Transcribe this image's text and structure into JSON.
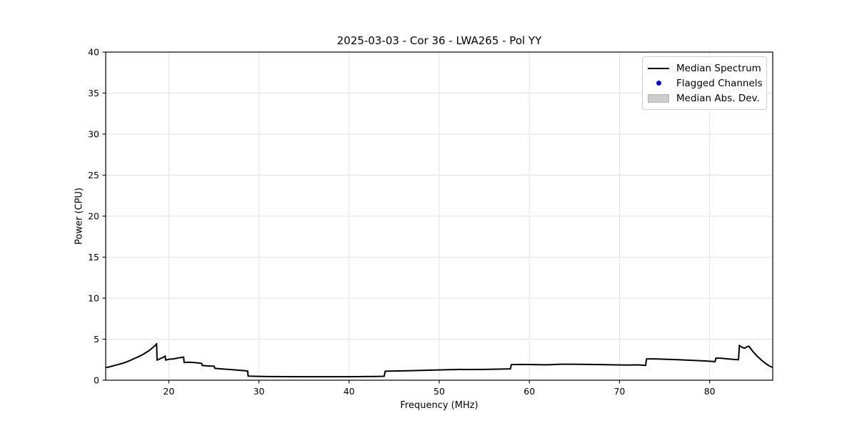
{
  "figure": {
    "title": "2025-03-03 - Cor 36 - LWA265 - Pol YY",
    "xlabel": "Frequency (MHz)",
    "ylabel": "Power (CPU)"
  },
  "legend": {
    "position": "upper right",
    "items": [
      {
        "label": "Median Spectrum",
        "type": "line",
        "color": "#000000"
      },
      {
        "label": "Flagged Channels",
        "type": "dot",
        "color": "#0000ff"
      },
      {
        "label": "Median Abs. Dev.",
        "type": "patch",
        "color": "#cccccc",
        "edge_color": "#b3b3b3"
      }
    ]
  },
  "chart_data": {
    "type": "line",
    "title": "2025-03-03 - Cor 36 - LWA265 - Pol YY",
    "xlabel": "Frequency (MHz)",
    "ylabel": "Power (CPU)",
    "xlim": [
      13,
      87
    ],
    "ylim": [
      0,
      40
    ],
    "xticks": [
      20,
      30,
      40,
      50,
      60,
      70,
      80
    ],
    "yticks": [
      0,
      5,
      10,
      15,
      20,
      25,
      30,
      35,
      40
    ],
    "grid": true,
    "grid_color": "#e3e3e3",
    "legend_position": "upper right",
    "flagged_channels": [],
    "series": [
      {
        "name": "Median Spectrum",
        "color": "#000000",
        "line_width": 2,
        "x": [
          13.1,
          13.5,
          14.0,
          14.5,
          15.0,
          15.6,
          16.2,
          16.8,
          17.3,
          17.8,
          18.2,
          18.5,
          18.65,
          18.7,
          19.0,
          19.4,
          19.6,
          19.65,
          20.0,
          20.5,
          21.0,
          21.5,
          21.65,
          21.7,
          22.2,
          22.8,
          23.3,
          23.65,
          23.7,
          24.2,
          24.8,
          25.05,
          25.1,
          25.6,
          26.2,
          26.8,
          27.4,
          28.0,
          28.5,
          28.75,
          28.8,
          29.5,
          31.0,
          33.0,
          35.0,
          37.0,
          39.0,
          41.0,
          43.0,
          43.9,
          44.0,
          45.0,
          46.5,
          48.0,
          49.5,
          51.0,
          52.0,
          52.1,
          53.5,
          55.0,
          56.5,
          57.9,
          58.0,
          59.0,
          60.5,
          62.0,
          63.5,
          65.0,
          66.5,
          68.0,
          69.5,
          71.0,
          72.0,
          72.9,
          73.0,
          74.0,
          75.0,
          76.5,
          78.0,
          79.5,
          80.4,
          80.6,
          80.7,
          81.2,
          82.0,
          82.8,
          83.2,
          83.3,
          83.6,
          83.9,
          84.1,
          84.35,
          84.8,
          85.3,
          85.8,
          86.2,
          86.6,
          86.9
        ],
        "y": [
          1.55,
          1.65,
          1.8,
          1.95,
          2.1,
          2.35,
          2.65,
          2.95,
          3.25,
          3.6,
          3.95,
          4.25,
          4.45,
          2.45,
          2.6,
          2.8,
          2.95,
          2.45,
          2.55,
          2.6,
          2.7,
          2.8,
          2.82,
          2.15,
          2.2,
          2.15,
          2.1,
          2.05,
          1.8,
          1.75,
          1.72,
          1.7,
          1.45,
          1.4,
          1.35,
          1.3,
          1.25,
          1.2,
          1.15,
          1.12,
          0.5,
          0.48,
          0.45,
          0.43,
          0.42,
          0.42,
          0.42,
          0.44,
          0.46,
          0.48,
          1.1,
          1.12,
          1.15,
          1.2,
          1.24,
          1.28,
          1.3,
          1.32,
          1.3,
          1.32,
          1.35,
          1.38,
          1.9,
          1.92,
          1.9,
          1.88,
          1.95,
          1.95,
          1.92,
          1.9,
          1.87,
          1.85,
          1.87,
          1.8,
          2.6,
          2.6,
          2.55,
          2.5,
          2.42,
          2.35,
          2.28,
          2.25,
          2.7,
          2.68,
          2.6,
          2.52,
          2.5,
          4.25,
          4.0,
          3.9,
          4.05,
          4.15,
          3.5,
          2.9,
          2.4,
          2.05,
          1.75,
          1.6
        ]
      }
    ]
  }
}
